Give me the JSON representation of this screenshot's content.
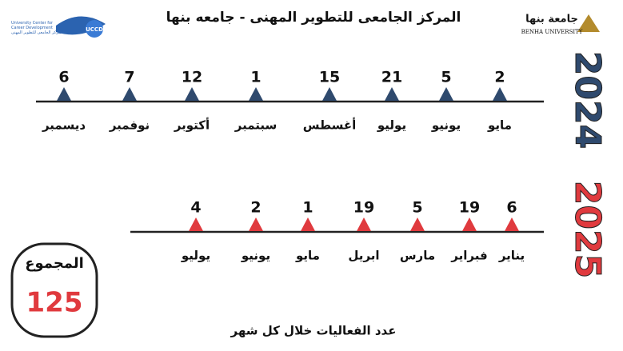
{
  "header": {
    "title": "المركز الجامعى للتطوير المهنى - جامعه بنها",
    "left_logo": {
      "acronym": "UCCD",
      "name": "University Center for Career Development",
      "arabic": "المركز الجامعى للتطوير المهنى"
    },
    "right_logo": {
      "arabic": "جامعة بنها",
      "name": "BENHA UNIVERSITY"
    }
  },
  "timelines": [
    {
      "year": "2024",
      "events": [
        {
          "month": "مايو",
          "count": 2
        },
        {
          "month": "يونيو",
          "count": 5
        },
        {
          "month": "يوليو",
          "count": 21
        },
        {
          "month": "أغسطس",
          "count": 15
        },
        {
          "month": "سبتمبر",
          "count": 1
        },
        {
          "month": "أكتوبر",
          "count": 12
        },
        {
          "month": "نوفمبر",
          "count": 7
        },
        {
          "month": "ديسمبر",
          "count": 6
        }
      ]
    },
    {
      "year": "2025",
      "events": [
        {
          "month": "يناير",
          "count": 6
        },
        {
          "month": "فبراير",
          "count": 19
        },
        {
          "month": "مارس",
          "count": 5
        },
        {
          "month": "ابريل",
          "count": 19
        },
        {
          "month": "مايو",
          "count": 1
        },
        {
          "month": "يونيو",
          "count": 2
        },
        {
          "month": "يوليو",
          "count": 4
        }
      ]
    }
  ],
  "total": {
    "label": "المجموع",
    "value": 125
  },
  "footer": "عدد الفعاليات خلال كل شهر"
}
